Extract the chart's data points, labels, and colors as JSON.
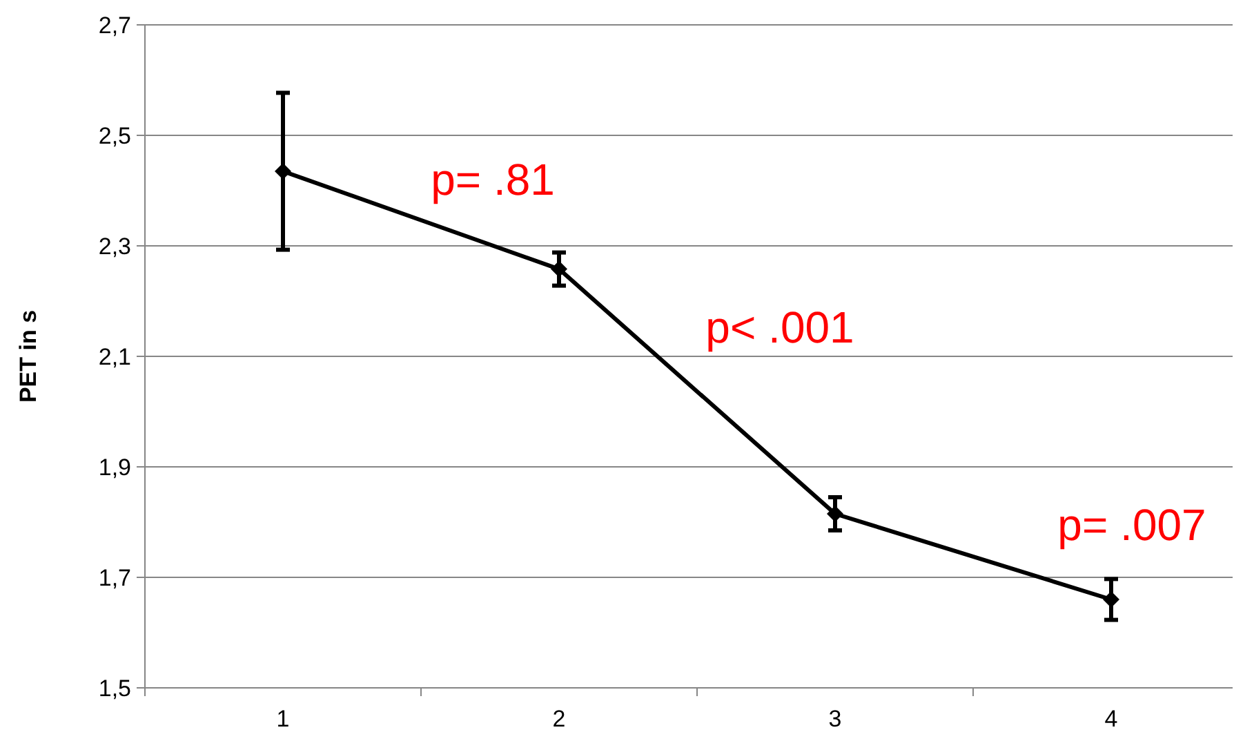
{
  "chart_data": {
    "type": "line",
    "ylabel": "PET in s",
    "categories": [
      "1",
      "2",
      "3",
      "4"
    ],
    "series": [
      {
        "color": "#000000",
        "values": [
          2.435,
          2.258,
          1.815,
          1.66
        ],
        "errors": [
          0.142,
          0.03,
          0.03,
          0.037
        ]
      }
    ],
    "ylim": [
      1.5,
      2.7
    ],
    "yticks": [
      {
        "value": 1.5,
        "label": "1,5"
      },
      {
        "value": 1.7,
        "label": "1,7"
      },
      {
        "value": 1.9,
        "label": "1,9"
      },
      {
        "value": 2.1,
        "label": "2,1"
      },
      {
        "value": 2.3,
        "label": "2,3"
      },
      {
        "value": 2.5,
        "label": "2,5"
      },
      {
        "value": 2.7,
        "label": "2,7"
      }
    ],
    "grid": "y",
    "marker": "diamond",
    "line_style": "solid",
    "annotations": [
      "p= .81",
      "p< .001",
      "p= .007"
    ]
  }
}
